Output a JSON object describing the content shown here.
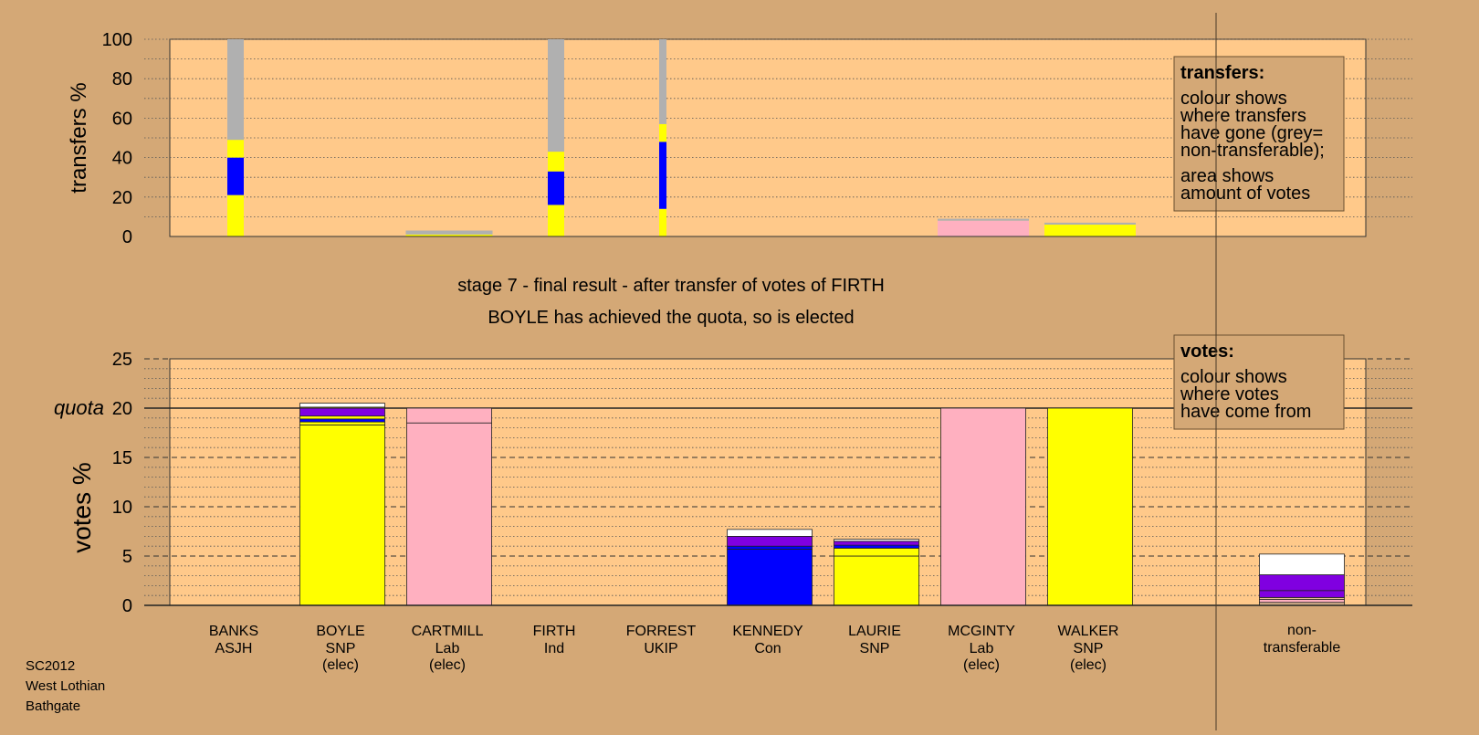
{
  "colors": {
    "background": "#d4a876",
    "plot_bg": "#ffc98a",
    "SNP": "#ffff00",
    "Lab": "#ffb0c0",
    "Con": "#0000ff",
    "other": "#8000e0",
    "grey": "#b0b0b0",
    "white": "#ffffff",
    "tan": "#e0b890"
  },
  "title": {
    "line1": "stage 7 - final result - after transfer of votes of FIRTH",
    "line2": "BOYLE has achieved the quota, so is elected"
  },
  "footer": [
    "SC2012",
    "West Lothian",
    "Bathgate"
  ],
  "chart_data": [
    {
      "type": "bar",
      "stacked": true,
      "ylabel": "transfers %",
      "ylim": [
        0,
        100
      ],
      "yticks": [
        0,
        20,
        40,
        60,
        80,
        100
      ],
      "grid": true,
      "legend": {
        "position": "top-right",
        "title": "transfers:",
        "lines": [
          "colour shows",
          "where transfers",
          "have gone (grey=",
          "non-transferable);",
          "area shows",
          "amount of votes"
        ]
      },
      "columns": [
        {
          "candidate": "BANKS",
          "width": 0.18,
          "segments": [
            {
              "color": "SNP",
              "value": 21
            },
            {
              "color": "Con",
              "value": 19
            },
            {
              "color": "SNP",
              "value": 9
            },
            {
              "color": "grey",
              "value": 51
            }
          ]
        },
        {
          "candidate": "BOYLE",
          "width": 0,
          "segments": []
        },
        {
          "candidate": "CARTMILL",
          "width": 0.95,
          "segments": [
            {
              "color": "SNP",
              "value": 1
            },
            {
              "color": "grey",
              "value": 2
            }
          ]
        },
        {
          "candidate": "FIRTH",
          "width": 0.18,
          "segments": [
            {
              "color": "SNP",
              "value": 16
            },
            {
              "color": "Con",
              "value": 17
            },
            {
              "color": "SNP",
              "value": 10
            },
            {
              "color": "grey",
              "value": 57
            }
          ]
        },
        {
          "candidate": "FORREST",
          "width": 0.08,
          "segments": [
            {
              "color": "SNP",
              "value": 14
            },
            {
              "color": "Con",
              "value": 34
            },
            {
              "color": "SNP",
              "value": 9
            },
            {
              "color": "grey",
              "value": 43
            }
          ]
        },
        {
          "candidate": "KENNEDY",
          "width": 0,
          "segments": []
        },
        {
          "candidate": "LAURIE",
          "width": 0,
          "segments": []
        },
        {
          "candidate": "MCGINTY",
          "width": 1.0,
          "segments": [
            {
              "color": "Lab",
              "value": 8
            },
            {
              "color": "grey",
              "value": 1
            }
          ]
        },
        {
          "candidate": "WALKER",
          "width": 1.0,
          "segments": [
            {
              "color": "SNP",
              "value": 6
            },
            {
              "color": "grey",
              "value": 1
            }
          ]
        }
      ]
    },
    {
      "type": "bar",
      "stacked": true,
      "ylabel": "votes %",
      "ylim": [
        0,
        25
      ],
      "yticks": [
        0,
        5,
        10,
        15,
        20,
        25
      ],
      "quota": 20,
      "quota_label": "quota",
      "grid": true,
      "legend": {
        "position": "top-right",
        "title": "votes:",
        "lines": [
          "colour shows",
          "where votes",
          "have come from"
        ]
      },
      "categories": [
        {
          "name": "BANKS",
          "party": "ASJH",
          "status": ""
        },
        {
          "name": "BOYLE",
          "party": "SNP",
          "status": "(elec)"
        },
        {
          "name": "CARTMILL",
          "party": "Lab",
          "status": "(elec)"
        },
        {
          "name": "FIRTH",
          "party": "Ind",
          "status": ""
        },
        {
          "name": "FORREST",
          "party": "UKIP",
          "status": ""
        },
        {
          "name": "KENNEDY",
          "party": "Con",
          "status": ""
        },
        {
          "name": "LAURIE",
          "party": "SNP",
          "status": ""
        },
        {
          "name": "MCGINTY",
          "party": "Lab",
          "status": "(elec)"
        },
        {
          "name": "WALKER",
          "party": "SNP",
          "status": "(elec)"
        }
      ],
      "nontransferable_label": [
        "non-",
        "transferable"
      ],
      "stacks": [
        [],
        [
          {
            "color": "SNP",
            "value": 18.3
          },
          {
            "color": "SNP",
            "value": 0.3
          },
          {
            "color": "Con",
            "value": 0.3
          },
          {
            "color": "SNP",
            "value": 0.3
          },
          {
            "color": "other",
            "value": 0.8
          },
          {
            "color": "SNP",
            "value": 0.1
          },
          {
            "color": "white",
            "value": 0.4
          }
        ],
        [
          {
            "color": "Lab",
            "value": 18.5
          },
          {
            "color": "Lab",
            "value": 1.5
          }
        ],
        [],
        [],
        [
          {
            "color": "Con",
            "value": 5.7
          },
          {
            "color": "Con",
            "value": 0.3
          },
          {
            "color": "other",
            "value": 1.0
          },
          {
            "color": "white",
            "value": 0.7
          }
        ],
        [
          {
            "color": "SNP",
            "value": 5.0
          },
          {
            "color": "SNP",
            "value": 0.8
          },
          {
            "color": "Con",
            "value": 0.3
          },
          {
            "color": "other",
            "value": 0.4
          },
          {
            "color": "white",
            "value": 0.2
          }
        ],
        [
          {
            "color": "Lab",
            "value": 20.0
          }
        ],
        [
          {
            "color": "SNP",
            "value": 20.0
          }
        ]
      ],
      "nontransferable": [
        {
          "color": "tan",
          "value": 0.3
        },
        {
          "color": "Lab",
          "value": 0.3
        },
        {
          "color": "tan",
          "value": 0.2
        },
        {
          "color": "other",
          "value": 0.7
        },
        {
          "color": "other",
          "value": 1.6
        },
        {
          "color": "white",
          "value": 2.1
        }
      ]
    }
  ]
}
